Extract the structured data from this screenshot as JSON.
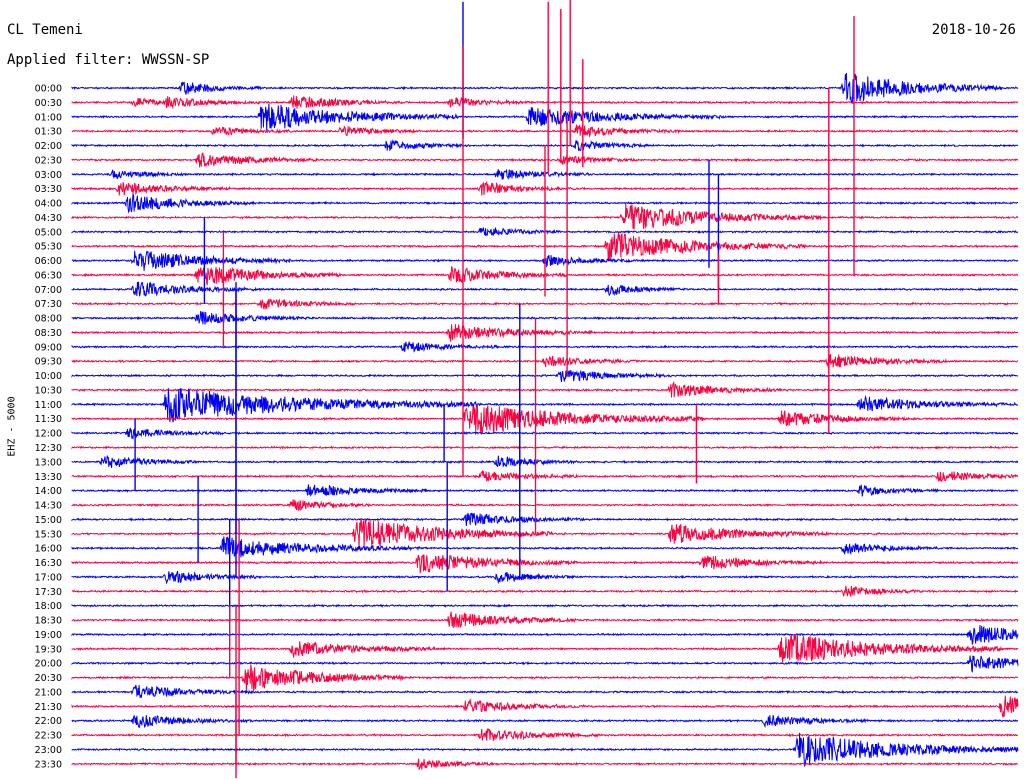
{
  "header": {
    "station": "CL Temeni",
    "date": "2018-10-26",
    "filter_label": "Applied filter:",
    "filter_value": "WWSSN-SP"
  },
  "channel": {
    "component": "EHZ",
    "separator": " - ",
    "scale": "5000"
  },
  "colors": {
    "background": "#ffffff",
    "text": "#000000",
    "trace_even_hour": "#0000ff",
    "trace_odd_half_hour": "#ff0040"
  },
  "chart_data": {
    "type": "line",
    "title": "CL Temeni",
    "subtitle": "Applied filter: WWSSN-SP",
    "xlabel": "",
    "ylabel": "EHZ - 5000",
    "grid": false,
    "legend": "none",
    "row_labels": [
      "00:00",
      "00:30",
      "01:00",
      "01:30",
      "02:00",
      "02:30",
      "03:00",
      "03:30",
      "04:00",
      "04:30",
      "05:00",
      "05:30",
      "06:00",
      "06:30",
      "07:00",
      "07:30",
      "08:00",
      "08:30",
      "09:00",
      "09:30",
      "10:00",
      "10:30",
      "11:00",
      "11:30",
      "12:00",
      "12:30",
      "13:00",
      "13:30",
      "14:00",
      "14:30",
      "15:00",
      "15:30",
      "16:00",
      "16:30",
      "17:00",
      "17:30",
      "18:00",
      "18:30",
      "19:00",
      "19:30",
      "20:00",
      "20:30",
      "21:00",
      "21:30",
      "22:00",
      "22:30",
      "23:00",
      "23:30"
    ],
    "row_colors": [
      "blue",
      "red"
    ],
    "row_minutes": 30,
    "background_noise_level": 0.12,
    "events": [
      {
        "row": 0,
        "minute": 24.5,
        "amplitude": 3.0,
        "duration": 2.0
      },
      {
        "row": 0,
        "minute": 3.5,
        "amplitude": 1.2,
        "duration": 1.0
      },
      {
        "row": 1,
        "minute": 3.0,
        "amplitude": 0.9,
        "duration": 1.2
      },
      {
        "row": 1,
        "minute": 7.0,
        "amplitude": 1.3,
        "duration": 1.4
      },
      {
        "row": 1,
        "minute": 12.0,
        "amplitude": 1.0,
        "duration": 1.0
      },
      {
        "row": 1,
        "minute": 2.0,
        "amplitude": 0.8,
        "duration": 0.8
      },
      {
        "row": 2,
        "minute": 6.0,
        "amplitude": 2.6,
        "duration": 2.5
      },
      {
        "row": 2,
        "minute": 14.5,
        "amplitude": 1.8,
        "duration": 2.5
      },
      {
        "row": 3,
        "minute": 4.5,
        "amplitude": 0.8,
        "duration": 1.0
      },
      {
        "row": 3,
        "minute": 8.5,
        "amplitude": 1.0,
        "duration": 1.0
      },
      {
        "row": 3,
        "minute": 16.0,
        "amplitude": 1.1,
        "duration": 1.3
      },
      {
        "row": 4,
        "minute": 10.0,
        "amplitude": 0.9,
        "duration": 1.1
      },
      {
        "row": 4,
        "minute": 16.0,
        "amplitude": 0.9,
        "duration": 1.0
      },
      {
        "row": 5,
        "minute": 4.0,
        "amplitude": 1.3,
        "duration": 1.5
      },
      {
        "row": 5,
        "minute": 15.5,
        "amplitude": 0.9,
        "duration": 1.0
      },
      {
        "row": 6,
        "minute": 1.3,
        "amplitude": 0.8,
        "duration": 1.0
      },
      {
        "row": 6,
        "minute": 13.5,
        "amplitude": 1.0,
        "duration": 1.2
      },
      {
        "row": 7,
        "minute": 1.5,
        "amplitude": 1.2,
        "duration": 1.4
      },
      {
        "row": 7,
        "minute": 13.0,
        "amplitude": 1.2,
        "duration": 1.2
      },
      {
        "row": 8,
        "minute": 1.8,
        "amplitude": 1.6,
        "duration": 1.6
      },
      {
        "row": 9,
        "minute": 17.5,
        "amplitude": 2.5,
        "duration": 2.5
      },
      {
        "row": 10,
        "minute": 13.0,
        "amplitude": 1.0,
        "duration": 1.0
      },
      {
        "row": 11,
        "minute": 17.0,
        "amplitude": 2.6,
        "duration": 2.5
      },
      {
        "row": 12,
        "minute": 2.0,
        "amplitude": 2.0,
        "duration": 2.0
      },
      {
        "row": 12,
        "minute": 15.0,
        "amplitude": 1.0,
        "duration": 1.2
      },
      {
        "row": 13,
        "minute": 4.0,
        "amplitude": 2.0,
        "duration": 1.8
      },
      {
        "row": 13,
        "minute": 12.0,
        "amplitude": 1.5,
        "duration": 1.5
      },
      {
        "row": 14,
        "minute": 2.0,
        "amplitude": 1.4,
        "duration": 1.6
      },
      {
        "row": 14,
        "minute": 17.0,
        "amplitude": 1.0,
        "duration": 1.0
      },
      {
        "row": 15,
        "minute": 6.0,
        "amplitude": 1.0,
        "duration": 1.2
      },
      {
        "row": 16,
        "minute": 4.0,
        "amplitude": 1.2,
        "duration": 1.4
      },
      {
        "row": 17,
        "minute": 12.0,
        "amplitude": 1.5,
        "duration": 1.8
      },
      {
        "row": 18,
        "minute": 10.5,
        "amplitude": 1.0,
        "duration": 1.2
      },
      {
        "row": 19,
        "minute": 15.0,
        "amplitude": 1.0,
        "duration": 1.2
      },
      {
        "row": 19,
        "minute": 24.0,
        "amplitude": 1.4,
        "duration": 1.5
      },
      {
        "row": 20,
        "minute": 15.5,
        "amplitude": 1.2,
        "duration": 1.4
      },
      {
        "row": 21,
        "minute": 19.0,
        "amplitude": 1.3,
        "duration": 1.4
      },
      {
        "row": 22,
        "minute": 3.0,
        "amplitude": 3.2,
        "duration": 4.0
      },
      {
        "row": 22,
        "minute": 25.0,
        "amplitude": 1.4,
        "duration": 2.0
      },
      {
        "row": 23,
        "minute": 12.5,
        "amplitude": 3.0,
        "duration": 3.0
      },
      {
        "row": 23,
        "minute": 22.5,
        "amplitude": 1.4,
        "duration": 1.6
      },
      {
        "row": 24,
        "minute": 1.8,
        "amplitude": 1.0,
        "duration": 1.2
      },
      {
        "row": 26,
        "minute": 1.0,
        "amplitude": 1.2,
        "duration": 1.2
      },
      {
        "row": 26,
        "minute": 13.5,
        "amplitude": 1.0,
        "duration": 1.0
      },
      {
        "row": 27,
        "minute": 13.0,
        "amplitude": 1.0,
        "duration": 1.2
      },
      {
        "row": 27,
        "minute": 27.5,
        "amplitude": 1.1,
        "duration": 1.2
      },
      {
        "row": 28,
        "minute": 7.5,
        "amplitude": 1.2,
        "duration": 1.5
      },
      {
        "row": 28,
        "minute": 25.0,
        "amplitude": 1.0,
        "duration": 1.0
      },
      {
        "row": 29,
        "minute": 7.0,
        "amplitude": 1.0,
        "duration": 1.0
      },
      {
        "row": 30,
        "minute": 12.5,
        "amplitude": 1.2,
        "duration": 1.5
      },
      {
        "row": 31,
        "minute": 9.0,
        "amplitude": 3.0,
        "duration": 2.5
      },
      {
        "row": 31,
        "minute": 19.0,
        "amplitude": 1.8,
        "duration": 2.0
      },
      {
        "row": 32,
        "minute": 4.8,
        "amplitude": 2.0,
        "duration": 2.5
      },
      {
        "row": 32,
        "minute": 24.5,
        "amplitude": 1.0,
        "duration": 1.2
      },
      {
        "row": 33,
        "minute": 11.0,
        "amplitude": 2.0,
        "duration": 2.0
      },
      {
        "row": 33,
        "minute": 20.0,
        "amplitude": 1.3,
        "duration": 1.5
      },
      {
        "row": 34,
        "minute": 3.0,
        "amplitude": 1.2,
        "duration": 1.2
      },
      {
        "row": 34,
        "minute": 13.5,
        "amplitude": 1.0,
        "duration": 1.0
      },
      {
        "row": 35,
        "minute": 24.5,
        "amplitude": 1.0,
        "duration": 1.0
      },
      {
        "row": 37,
        "minute": 12.0,
        "amplitude": 1.5,
        "duration": 1.6
      },
      {
        "row": 38,
        "minute": 28.5,
        "amplitude": 1.8,
        "duration": 1.8
      },
      {
        "row": 39,
        "minute": 7.0,
        "amplitude": 1.5,
        "duration": 1.8
      },
      {
        "row": 39,
        "minute": 22.5,
        "amplitude": 3.0,
        "duration": 2.8
      },
      {
        "row": 40,
        "minute": 28.5,
        "amplitude": 1.5,
        "duration": 1.6
      },
      {
        "row": 41,
        "minute": 5.5,
        "amplitude": 2.5,
        "duration": 2.0
      },
      {
        "row": 42,
        "minute": 2.0,
        "amplitude": 1.2,
        "duration": 1.5
      },
      {
        "row": 43,
        "minute": 12.5,
        "amplitude": 1.2,
        "duration": 1.5
      },
      {
        "row": 43,
        "minute": 29.5,
        "amplitude": 2.0,
        "duration": 1.5
      },
      {
        "row": 44,
        "minute": 2.0,
        "amplitude": 1.2,
        "duration": 1.5
      },
      {
        "row": 44,
        "minute": 22.0,
        "amplitude": 1.1,
        "duration": 1.3
      },
      {
        "row": 45,
        "minute": 13.0,
        "amplitude": 1.2,
        "duration": 1.5
      },
      {
        "row": 46,
        "minute": 23.0,
        "amplitude": 3.0,
        "duration": 3.0
      },
      {
        "row": 47,
        "minute": 11.0,
        "amplitude": 1.0,
        "duration": 1.0
      }
    ],
    "spikes": [
      {
        "row": 0,
        "minute": 12.4,
        "up": 6.0,
        "down": 3.5
      },
      {
        "row": 1,
        "minute": 15.1,
        "up": 7.0,
        "down": 5.0
      },
      {
        "row": 1,
        "minute": 15.5,
        "up": 6.5,
        "down": 4.0
      },
      {
        "row": 1,
        "minute": 15.8,
        "up": 7.5,
        "down": 3.0
      },
      {
        "row": 1,
        "minute": 16.2,
        "up": 3.0,
        "down": 4.5
      },
      {
        "row": 1,
        "minute": 24.8,
        "up": 6.0,
        "down": 12.0
      },
      {
        "row": 3,
        "minute": 24.0,
        "up": 3.0,
        "down": 13.0
      },
      {
        "row": 5,
        "minute": 12.4,
        "up": 8.0,
        "down": 22.0
      },
      {
        "row": 7,
        "minute": 15.7,
        "up": 5.0,
        "down": 13.0
      },
      {
        "row": 7,
        "minute": 15.0,
        "up": 3.0,
        "down": 7.5
      },
      {
        "row": 8,
        "minute": 20.2,
        "up": 3.0,
        "down": 4.5
      },
      {
        "row": 10,
        "minute": 20.5,
        "up": 4.0,
        "down": 4.0
      },
      {
        "row": 12,
        "minute": 4.2,
        "up": 3.0,
        "down": 3.0
      },
      {
        "row": 13,
        "minute": 20.5,
        "up": 1.5,
        "down": 2.0
      },
      {
        "row": 13,
        "minute": 4.8,
        "up": 3.0,
        "down": 5.0
      },
      {
        "row": 16,
        "minute": 5.2,
        "up": 2.5,
        "down": 18.0
      },
      {
        "row": 18,
        "minute": 14.2,
        "up": 3.0,
        "down": 16.0
      },
      {
        "row": 19,
        "minute": 14.7,
        "up": 3.0,
        "down": 12.0
      },
      {
        "row": 20,
        "minute": 14.2,
        "up": 3.0,
        "down": 10.0
      },
      {
        "row": 21,
        "minute": 24.0,
        "up": 6.0,
        "down": 3.0
      },
      {
        "row": 22,
        "minute": 5.2,
        "up": 8.0,
        "down": 9.0
      },
      {
        "row": 24,
        "minute": 11.8,
        "up": 2.0,
        "down": 2.0
      },
      {
        "row": 25,
        "minute": 19.8,
        "up": 3.0,
        "down": 2.5
      },
      {
        "row": 26,
        "minute": 2.0,
        "up": 3.0,
        "down": 2.0
      },
      {
        "row": 30,
        "minute": 4.0,
        "up": 3.0,
        "down": 3.0
      },
      {
        "row": 32,
        "minute": 11.9,
        "up": 6.0,
        "down": 3.0
      },
      {
        "row": 34,
        "minute": 5.0,
        "up": 4.0,
        "down": 3.0
      },
      {
        "row": 35,
        "minute": 5.3,
        "up": 5.0,
        "down": 10.0
      },
      {
        "row": 39,
        "minute": 5.0,
        "up": 3.0,
        "down": 2.0
      },
      {
        "row": 41,
        "minute": 5.2,
        "up": 5.0,
        "down": 6.0
      },
      {
        "row": 45,
        "minute": 5.2,
        "up": 3.0,
        "down": 3.0
      }
    ]
  }
}
